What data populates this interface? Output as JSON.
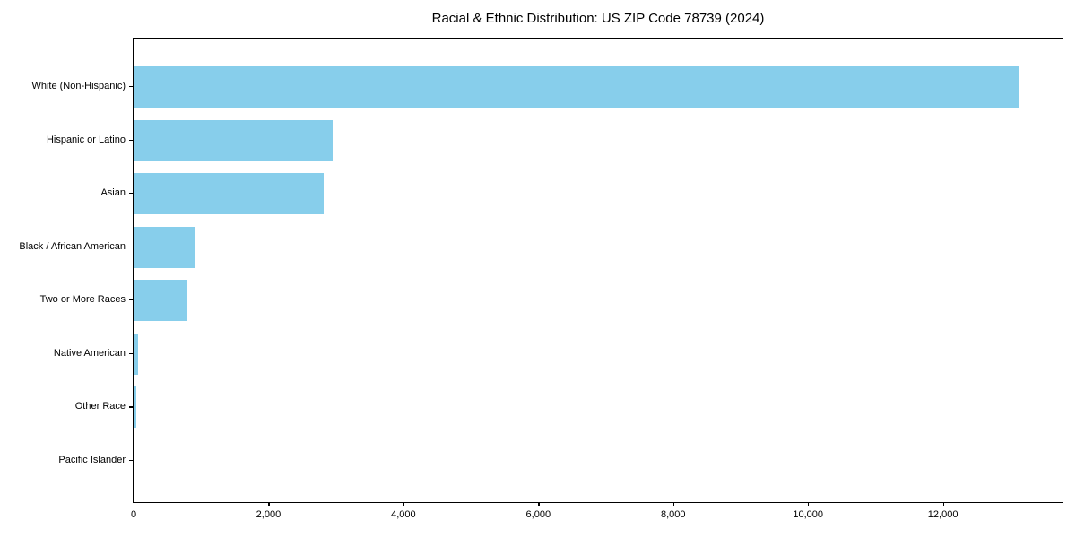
{
  "chart_data": {
    "type": "bar",
    "orientation": "horizontal",
    "title": "Racial & Ethnic Distribution: US ZIP Code 78739 (2024)",
    "categories": [
      "White (Non-Hispanic)",
      "Hispanic or Latino",
      "Asian",
      "Black / African American",
      "Two or More Races",
      "Native American",
      "Other Race",
      "Pacific Islander"
    ],
    "values": [
      13117,
      2950,
      2815,
      908,
      780,
      62,
      36,
      0
    ],
    "xlabel": "",
    "ylabel": "",
    "xlim": [
      0,
      13773
    ],
    "xticks": [
      0,
      2000,
      4000,
      6000,
      8000,
      10000,
      12000
    ],
    "xtick_labels": [
      "0",
      "2,000",
      "4,000",
      "6,000",
      "8,000",
      "10,000",
      "12,000"
    ],
    "bar_color": "#87ceeb",
    "axis_color": "#000000",
    "background_color": "#ffffff",
    "grid": false,
    "legend": false
  }
}
